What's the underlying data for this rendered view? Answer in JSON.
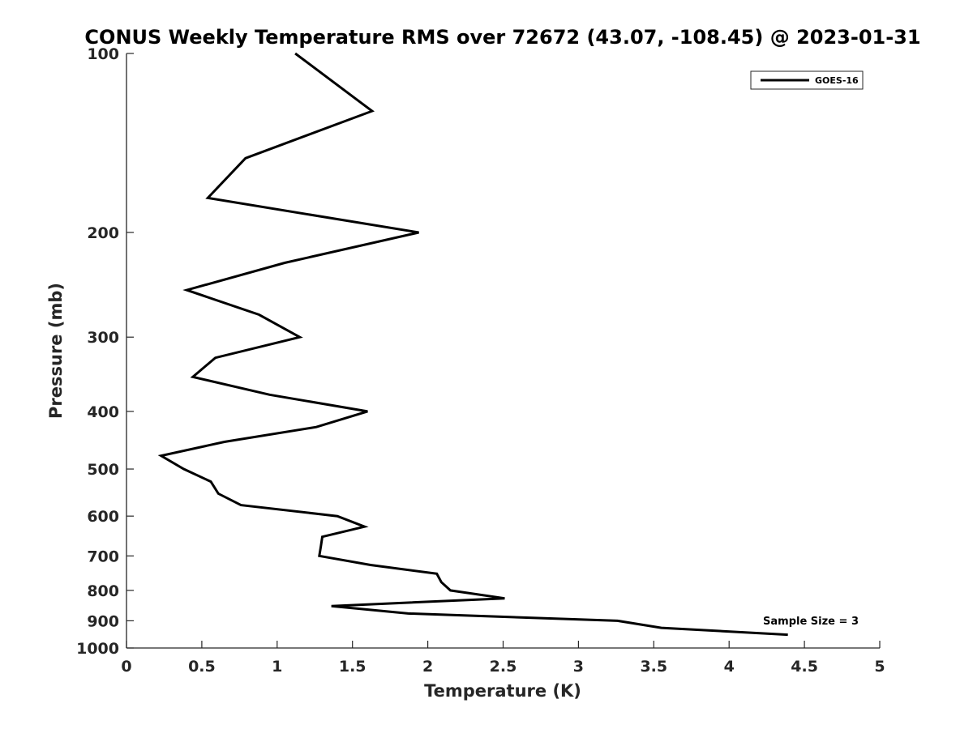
{
  "chart_data": {
    "type": "line",
    "title": "CONUS Weekly Temperature RMS over 72672 (43.07, -108.45) @ 2023-01-31",
    "xlabel": "Temperature (K)",
    "ylabel": "Pressure (mb)",
    "xlim": [
      0,
      5
    ],
    "ylim": [
      1000,
      100
    ],
    "y_scale": "log",
    "y_reversed": true,
    "x_ticks": [
      0,
      0.5,
      1,
      1.5,
      2,
      2.5,
      3,
      3.5,
      4,
      4.5,
      5
    ],
    "x_tick_labels": [
      "0",
      "0.5",
      "1",
      "1.5",
      "2",
      "2.5",
      "3",
      "3.5",
      "4",
      "4.5",
      "5"
    ],
    "y_ticks": [
      100,
      200,
      300,
      400,
      500,
      600,
      700,
      800,
      900,
      1000
    ],
    "y_tick_labels": [
      "100",
      "200",
      "300",
      "400",
      "500",
      "600",
      "700",
      "800",
      "900",
      "1000"
    ],
    "grid": false,
    "legend_position": "top-right",
    "series": [
      {
        "name": "GOES-16",
        "color": "#000000",
        "points": [
          {
            "x": 1.12,
            "y": 100
          },
          {
            "x": 1.63,
            "y": 125
          },
          {
            "x": 0.79,
            "y": 150
          },
          {
            "x": 0.54,
            "y": 175
          },
          {
            "x": 1.94,
            "y": 200
          },
          {
            "x": 1.05,
            "y": 225
          },
          {
            "x": 0.4,
            "y": 250
          },
          {
            "x": 0.88,
            "y": 275
          },
          {
            "x": 1.15,
            "y": 300
          },
          {
            "x": 0.59,
            "y": 325
          },
          {
            "x": 0.44,
            "y": 350
          },
          {
            "x": 0.95,
            "y": 375
          },
          {
            "x": 1.6,
            "y": 400
          },
          {
            "x": 1.26,
            "y": 425
          },
          {
            "x": 0.65,
            "y": 450
          },
          {
            "x": 0.23,
            "y": 475
          },
          {
            "x": 0.38,
            "y": 500
          },
          {
            "x": 0.56,
            "y": 525
          },
          {
            "x": 0.61,
            "y": 550
          },
          {
            "x": 0.76,
            "y": 575
          },
          {
            "x": 1.4,
            "y": 600
          },
          {
            "x": 1.58,
            "y": 625
          },
          {
            "x": 1.3,
            "y": 650
          },
          {
            "x": 1.29,
            "y": 675
          },
          {
            "x": 1.28,
            "y": 700
          },
          {
            "x": 1.62,
            "y": 725
          },
          {
            "x": 2.06,
            "y": 750
          },
          {
            "x": 2.09,
            "y": 775
          },
          {
            "x": 2.15,
            "y": 800
          },
          {
            "x": 2.51,
            "y": 825
          },
          {
            "x": 1.36,
            "y": 850
          },
          {
            "x": 1.87,
            "y": 875
          },
          {
            "x": 3.26,
            "y": 900
          },
          {
            "x": 3.55,
            "y": 925
          },
          {
            "x": 4.39,
            "y": 950
          }
        ]
      }
    ],
    "annotations": [
      {
        "text": "Sample Size = 3",
        "position": "bottom-right"
      }
    ]
  }
}
